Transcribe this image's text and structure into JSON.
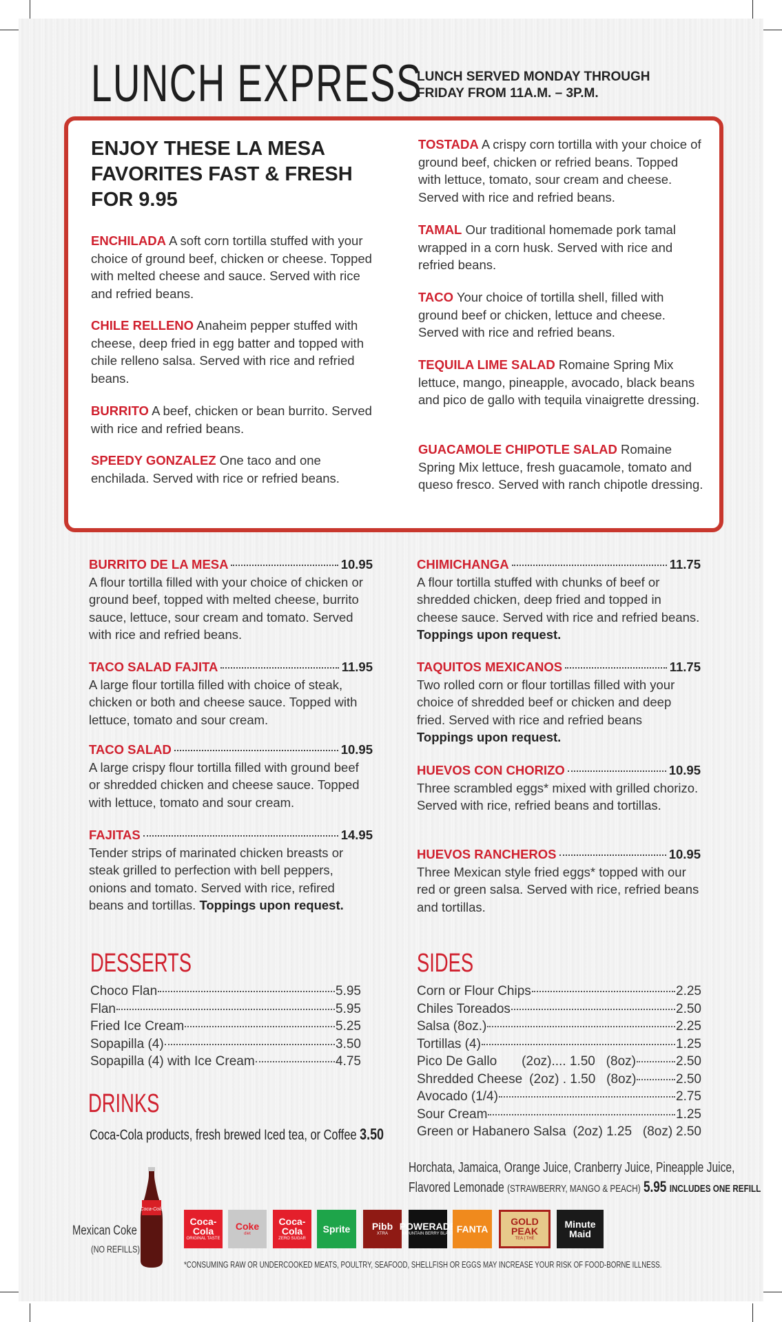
{
  "header": {
    "title": "LUNCH EXPRESS",
    "hours": "LUNCH SERVED MONDAY THROUGH FRIDAY FROM 11A.M. – 3P.M."
  },
  "promo": {
    "heading": "ENJOY THESE LA MESA FAVORITES FAST & FRESH FOR 9.95",
    "left_items": [
      {
        "name": "ENCHILADA",
        "desc": "A soft corn tortilla stuffed with your choice of ground beef, chicken or cheese. Topped with melted cheese and sauce. Served with rice and refried beans."
      },
      {
        "name": "CHILE RELLENO",
        "desc": "Anaheim pepper stuffed with cheese, deep fried in egg batter and topped with chile relleno salsa. Served with rice and refried beans."
      },
      {
        "name": "BURRITO",
        "desc": "A beef, chicken or bean burrito. Served with rice and refried beans."
      },
      {
        "name": "SPEEDY GONZALEZ",
        "desc": "One taco and one enchilada. Served with rice or refried beans."
      }
    ],
    "right_items": [
      {
        "name": "TOSTADA",
        "desc": "A crispy corn tortilla with your choice of  ground beef, chicken or refried beans. Topped with lettuce, tomato, sour cream and cheese.  Served with rice and refried beans."
      },
      {
        "name": "TAMAL",
        "desc": "Our traditional homemade pork tamal wrapped in a corn husk. Served with rice and refried beans."
      },
      {
        "name": "TACO",
        "desc": "Your choice of tortilla shell, filled with ground beef or chicken, lettuce and cheese. Served with rice and refried beans."
      },
      {
        "name": "TEQUILA LIME SALAD",
        "desc": "Romaine Spring Mix lettuce, mango, pineapple, avocado, black beans and pico de gallo with tequila vinaigrette dressing."
      },
      {
        "name": "GUACAMOLE CHIPOTLE SALAD",
        "desc": "Romaine Spring Mix lettuce, fresh guacamole, tomato and queso fresco. Served with ranch chipotle dressing."
      }
    ]
  },
  "entrees": {
    "left": [
      {
        "name": "BURRITO DE LA MESA",
        "price": "10.95",
        "desc": "A flour tortilla filled with your choice of chicken or ground beef, topped with melted cheese, burrito sauce, lettuce, sour cream and tomato. Served with rice and refried beans.",
        "note": ""
      },
      {
        "name": "TACO SALAD FAJITA",
        "price": "11.95",
        "desc": "A large flour tortilla filled with choice of steak, chicken or both and cheese sauce. Topped with lettuce, tomato and sour cream.",
        "note": ""
      },
      {
        "name": "TACO SALAD",
        "price": "10.95",
        "desc": "A large crispy flour tortilla filled with ground beef or shredded chicken and cheese sauce. Topped with lettuce, tomato and sour cream.",
        "note": ""
      },
      {
        "name": "FAJITAS",
        "price": "14.95",
        "desc": "Tender strips of marinated chicken breasts or steak grilled to perfection with bell peppers, onions and tomato. Served with rice, refired beans and tortillas.",
        "note": "Toppings upon request."
      }
    ],
    "right": [
      {
        "name": "CHIMICHANGA",
        "price": "11.75",
        "desc": "A flour tortilla stuffed with chunks of beef or shredded chicken, deep fried and topped in cheese sauce. Served with rice and refried beans.",
        "note": "Toppings upon request."
      },
      {
        "name": "TAQUITOS MEXICANOS",
        "price": "11.75",
        "desc": "Two rolled corn or flour tortillas filled with your choice of shredded beef or chicken and deep fried. Served with rice and refried beans",
        "note": "Toppings upon request."
      },
      {
        "name": "HUEVOS CON CHORIZO",
        "price": "10.95",
        "desc": "Three scrambled eggs* mixed with grilled chorizo. Served with rice, refried beans and tortillas.",
        "note": ""
      },
      {
        "name": "HUEVOS RANCHEROS",
        "price": "10.95",
        "desc": "Three Mexican style fried eggs* topped with our red or green salsa. Served with rice, refried beans and tortillas.",
        "note": ""
      }
    ]
  },
  "desserts": {
    "heading": "DESSERTS",
    "items": [
      {
        "name": "Choco Flan",
        "price": "5.95"
      },
      {
        "name": "Flan",
        "price": "5.95"
      },
      {
        "name": "Fried Ice Cream",
        "price": "5.25"
      },
      {
        "name": "Sopapilla (4)",
        "price": "3.50"
      },
      {
        "name": "Sopapilla (4) with Ice Cream",
        "price": "4.75"
      }
    ]
  },
  "drinks": {
    "heading": "DRINKS",
    "line": "Coca-Cola products, fresh brewed Iced tea, or Coffee",
    "price": "3.50",
    "juices_line1": "Horchata, Jamaica, Orange Juice, Cranberry Juice, Pineapple Juice,",
    "juices_line2": "Flavored Lemonade",
    "juices_flavors": "(STRAWBERRY, MANGO & PEACH)",
    "juices_price": "5.95",
    "juices_note": "INCLUDES ONE REFILL",
    "mexican_coke": "Mexican Coke",
    "mexican_coke_note": "(NO REFILLS)",
    "brands": [
      {
        "name": "Coca-Cola",
        "sub": "ORIGINAL TASTE",
        "color": "#e41f2b"
      },
      {
        "name": "Coke",
        "sub": "diet",
        "color": "#c9c9c9"
      },
      {
        "name": "Coca-Cola",
        "sub": "ZERO SUGAR",
        "color": "#e41f2b"
      },
      {
        "name": "Sprite",
        "sub": "",
        "color": "#1ea54a"
      },
      {
        "name": "Pibb",
        "sub": "XTRA",
        "color": "#8f1a14"
      },
      {
        "name": "POWERADE",
        "sub": "MOUNTAIN BERRY BLAST",
        "color": "#111111"
      },
      {
        "name": "FANTA",
        "sub": "",
        "color": "#f08a1d"
      },
      {
        "name": "GOLD PEAK",
        "sub": "TEA | THÉ",
        "color": "#e7c98a"
      },
      {
        "name": "Minute Maid",
        "sub": "",
        "color": "#1a1a1a"
      }
    ],
    "disclaimer": "*CONSUMING RAW OR UNDERCOOKED MEATS, POULTRY, SEAFOOD, SHELLFISH OR EGGS MAY INCREASE YOUR RISK OF FOOD-BORNE ILLNESS."
  },
  "sides": {
    "heading": "SIDES",
    "items": [
      {
        "name": "Corn or Flour Chips",
        "mid": "",
        "price": "2.25"
      },
      {
        "name": "Chiles Toreados",
        "mid": "",
        "price": "2.50"
      },
      {
        "name": "Salsa (8oz.)",
        "mid": "",
        "price": "2.25"
      },
      {
        "name": "Tortillas (4)",
        "mid": "",
        "price": "1.25"
      },
      {
        "name": "Pico De Gallo",
        "mid": "(2oz).... 1.50   (8oz)",
        "price": "2.50"
      },
      {
        "name": "Shredded Cheese",
        "mid": "(2oz) . 1.50   (8oz)",
        "price": "2.50"
      },
      {
        "name": "Avocado (1/4)",
        "mid": "",
        "price": "2.75"
      },
      {
        "name": "Sour Cream",
        "mid": "",
        "price": "1.25"
      },
      {
        "name": "Green or Habanero Salsa",
        "mid": "(2oz) 1.25   (8oz)",
        "price": "2.50",
        "nolead": true
      }
    ]
  },
  "colors": {
    "accent": "#d0202e",
    "border": "#c8372d"
  }
}
